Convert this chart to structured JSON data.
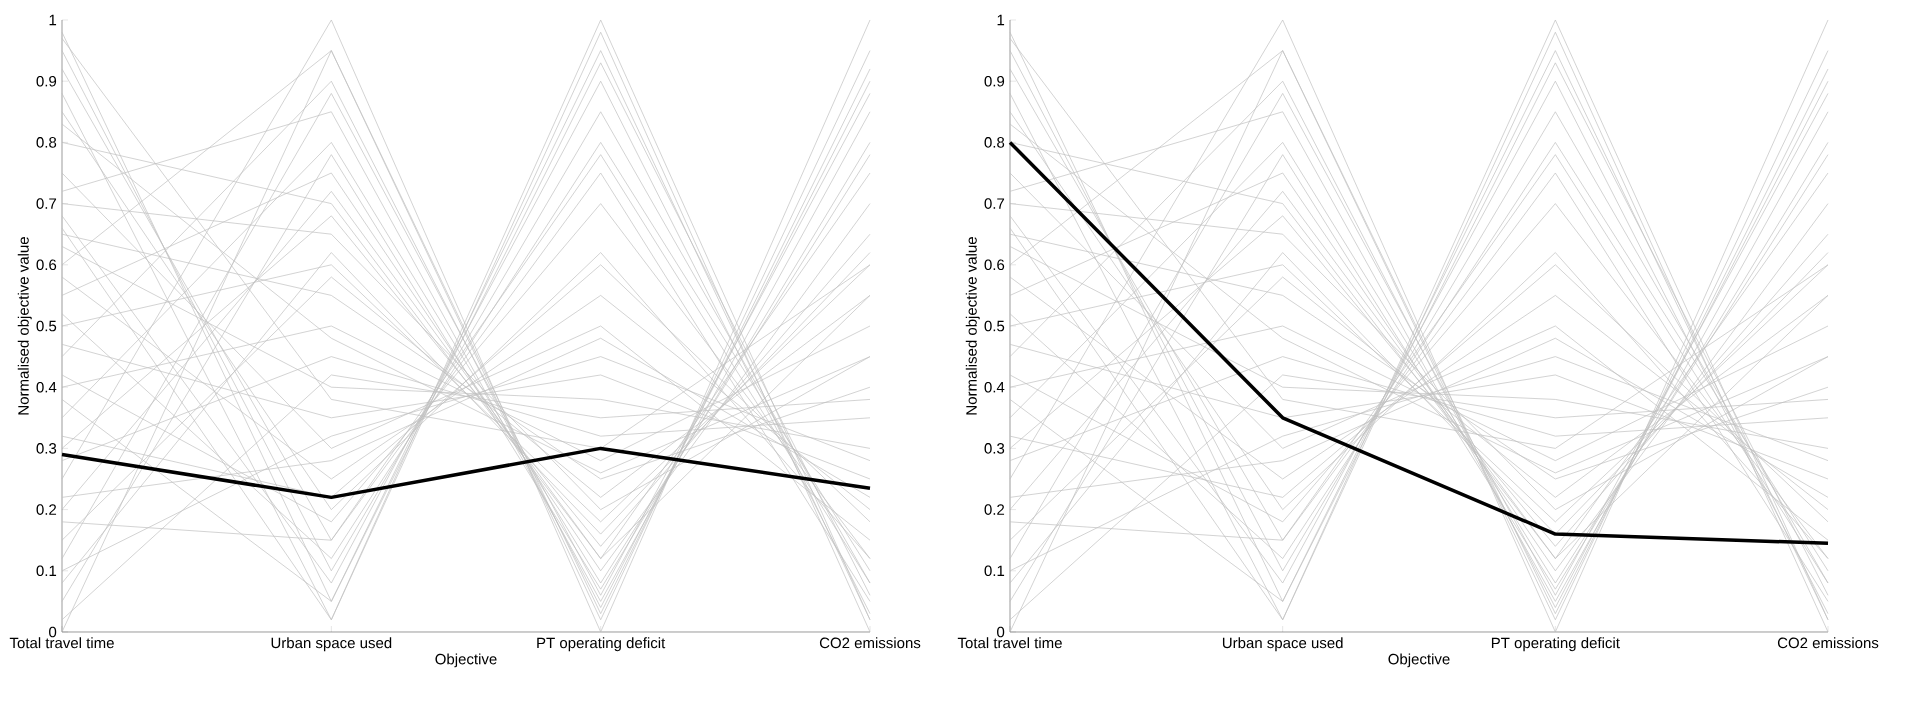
{
  "chart_data": [
    {
      "type": "line",
      "xlabel": "Objective",
      "ylabel": "Normalised objective value",
      "categories": [
        "Total travel time",
        "Urban space used",
        "PT operating deficit",
        "CO2 emissions"
      ],
      "ylim": [
        0,
        1
      ],
      "yticks": [
        0,
        0.1,
        0.2,
        0.3,
        0.4,
        0.5,
        0.6,
        0.7,
        0.8,
        0.9,
        1
      ],
      "series": [
        {
          "color": "#c0c0c0",
          "values": [
            0.98,
            0.05,
            0.95,
            0.02
          ]
        },
        {
          "color": "#c0c0c0",
          "values": [
            0.95,
            0.1,
            0.85,
            0.08
          ]
        },
        {
          "color": "#c0c0c0",
          "values": [
            0.92,
            0.15,
            0.75,
            0.05
          ]
        },
        {
          "color": "#c0c0c0",
          "values": [
            0.88,
            0.02,
            0.98,
            0.0
          ]
        },
        {
          "color": "#c0c0c0",
          "values": [
            0.85,
            0.2,
            0.62,
            0.12
          ]
        },
        {
          "color": "#c0c0c0",
          "values": [
            0.8,
            0.7,
            0.12,
            0.55
          ]
        },
        {
          "color": "#c0c0c0",
          "values": [
            0.75,
            0.3,
            0.5,
            0.15
          ]
        },
        {
          "color": "#c0c0c0",
          "values": [
            0.72,
            0.85,
            0.05,
            0.85
          ]
        },
        {
          "color": "#c0c0c0",
          "values": [
            0.7,
            0.65,
            0.2,
            0.45
          ]
        },
        {
          "color": "#c0c0c0",
          "values": [
            0.68,
            0.08,
            0.9,
            0.03
          ]
        },
        {
          "color": "#c0c0c0",
          "values": [
            0.65,
            0.55,
            0.25,
            0.4
          ]
        },
        {
          "color": "#c0c0c0",
          "values": [
            0.63,
            0.4,
            0.38,
            0.3
          ]
        },
        {
          "color": "#c0c0c0",
          "values": [
            0.6,
            0.95,
            0.02,
            0.95
          ]
        },
        {
          "color": "#c0c0c0",
          "values": [
            0.58,
            0.25,
            0.55,
            0.2
          ]
        },
        {
          "color": "#c0c0c0",
          "values": [
            0.55,
            0.75,
            0.1,
            0.7
          ]
        },
        {
          "color": "#c0c0c0",
          "values": [
            0.52,
            0.12,
            0.8,
            0.1
          ]
        },
        {
          "color": "#c0c0c0",
          "values": [
            0.5,
            0.6,
            0.18,
            0.6
          ]
        },
        {
          "color": "#c0c0c0",
          "values": [
            0.47,
            0.35,
            0.42,
            0.25
          ]
        },
        {
          "color": "#c0c0c0",
          "values": [
            0.45,
            0.9,
            0.04,
            0.9
          ]
        },
        {
          "color": "#c0c0c0",
          "values": [
            0.42,
            0.18,
            0.7,
            0.12
          ]
        },
        {
          "color": "#c0c0c0",
          "values": [
            0.4,
            0.5,
            0.28,
            0.5
          ]
        },
        {
          "color": "#c0c0c0",
          "values": [
            0.38,
            0.05,
            0.93,
            0.06
          ]
        },
        {
          "color": "#c0c0c0",
          "values": [
            0.35,
            0.8,
            0.08,
            0.78
          ]
        },
        {
          "color": "#c0c0c0",
          "values": [
            0.32,
            0.22,
            0.6,
            0.18
          ]
        },
        {
          "color": "#c0c0c0",
          "values": [
            0.3,
            0.68,
            0.14,
            0.65
          ]
        },
        {
          "color": "#c0c0c0",
          "values": [
            0.28,
            0.45,
            0.32,
            0.35
          ]
        },
        {
          "color": "#c0c0c0",
          "values": [
            0.25,
            1.0,
            0.0,
            1.0
          ]
        },
        {
          "color": "#c0c0c0",
          "values": [
            0.22,
            0.28,
            0.48,
            0.22
          ]
        },
        {
          "color": "#c0c0c0",
          "values": [
            0.2,
            0.72,
            0.12,
            0.75
          ]
        },
        {
          "color": "#c0c0c0",
          "values": [
            0.18,
            0.15,
            0.78,
            0.08
          ]
        },
        {
          "color": "#c0c0c0",
          "values": [
            0.15,
            0.58,
            0.22,
            0.55
          ]
        },
        {
          "color": "#c0c0c0",
          "values": [
            0.12,
            0.88,
            0.06,
            0.88
          ]
        },
        {
          "color": "#c0c0c0",
          "values": [
            0.1,
            0.32,
            0.45,
            0.28
          ]
        },
        {
          "color": "#c0c0c0",
          "values": [
            0.08,
            0.62,
            0.16,
            0.62
          ]
        },
        {
          "color": "#c0c0c0",
          "values": [
            0.05,
            0.78,
            0.07,
            0.8
          ]
        },
        {
          "color": "#c0c0c0",
          "values": [
            0.02,
            0.42,
            0.35,
            0.38
          ]
        },
        {
          "color": "#c0c0c0",
          "values": [
            0.0,
            0.95,
            0.03,
            0.92
          ]
        },
        {
          "color": "#c0c0c0",
          "values": [
            0.97,
            0.38,
            0.3,
            0.6
          ]
        },
        {
          "color": "#c0c0c0",
          "values": [
            0.83,
            0.48,
            0.26,
            0.45
          ]
        },
        {
          "color": "#c0c0c0",
          "values": [
            0.66,
            0.02,
            1.0,
            0.02
          ]
        },
        {
          "color": "#000000",
          "values": [
            0.29,
            0.22,
            0.3,
            0.235
          ]
        }
      ]
    },
    {
      "type": "line",
      "xlabel": "Objective",
      "ylabel": "Normalised objective value",
      "categories": [
        "Total travel time",
        "Urban space used",
        "PT operating deficit",
        "CO2 emissions"
      ],
      "ylim": [
        0,
        1
      ],
      "yticks": [
        0,
        0.1,
        0.2,
        0.3,
        0.4,
        0.5,
        0.6,
        0.7,
        0.8,
        0.9,
        1
      ],
      "series": [
        {
          "color": "#c0c0c0",
          "values": [
            0.98,
            0.05,
            0.95,
            0.02
          ]
        },
        {
          "color": "#c0c0c0",
          "values": [
            0.95,
            0.1,
            0.85,
            0.08
          ]
        },
        {
          "color": "#c0c0c0",
          "values": [
            0.92,
            0.15,
            0.75,
            0.05
          ]
        },
        {
          "color": "#c0c0c0",
          "values": [
            0.88,
            0.02,
            0.98,
            0.0
          ]
        },
        {
          "color": "#c0c0c0",
          "values": [
            0.85,
            0.2,
            0.62,
            0.12
          ]
        },
        {
          "color": "#c0c0c0",
          "values": [
            0.8,
            0.7,
            0.12,
            0.55
          ]
        },
        {
          "color": "#c0c0c0",
          "values": [
            0.75,
            0.3,
            0.5,
            0.15
          ]
        },
        {
          "color": "#c0c0c0",
          "values": [
            0.72,
            0.85,
            0.05,
            0.85
          ]
        },
        {
          "color": "#c0c0c0",
          "values": [
            0.7,
            0.65,
            0.2,
            0.45
          ]
        },
        {
          "color": "#c0c0c0",
          "values": [
            0.68,
            0.08,
            0.9,
            0.03
          ]
        },
        {
          "color": "#c0c0c0",
          "values": [
            0.65,
            0.55,
            0.25,
            0.4
          ]
        },
        {
          "color": "#c0c0c0",
          "values": [
            0.63,
            0.4,
            0.38,
            0.3
          ]
        },
        {
          "color": "#c0c0c0",
          "values": [
            0.6,
            0.95,
            0.02,
            0.95
          ]
        },
        {
          "color": "#c0c0c0",
          "values": [
            0.58,
            0.25,
            0.55,
            0.2
          ]
        },
        {
          "color": "#c0c0c0",
          "values": [
            0.55,
            0.75,
            0.1,
            0.7
          ]
        },
        {
          "color": "#c0c0c0",
          "values": [
            0.52,
            0.12,
            0.8,
            0.1
          ]
        },
        {
          "color": "#c0c0c0",
          "values": [
            0.5,
            0.6,
            0.18,
            0.6
          ]
        },
        {
          "color": "#c0c0c0",
          "values": [
            0.47,
            0.35,
            0.42,
            0.25
          ]
        },
        {
          "color": "#c0c0c0",
          "values": [
            0.45,
            0.9,
            0.04,
            0.9
          ]
        },
        {
          "color": "#c0c0c0",
          "values": [
            0.42,
            0.18,
            0.7,
            0.12
          ]
        },
        {
          "color": "#c0c0c0",
          "values": [
            0.4,
            0.5,
            0.28,
            0.5
          ]
        },
        {
          "color": "#c0c0c0",
          "values": [
            0.38,
            0.05,
            0.93,
            0.06
          ]
        },
        {
          "color": "#c0c0c0",
          "values": [
            0.35,
            0.8,
            0.08,
            0.78
          ]
        },
        {
          "color": "#c0c0c0",
          "values": [
            0.32,
            0.22,
            0.6,
            0.18
          ]
        },
        {
          "color": "#c0c0c0",
          "values": [
            0.3,
            0.68,
            0.14,
            0.65
          ]
        },
        {
          "color": "#c0c0c0",
          "values": [
            0.28,
            0.45,
            0.32,
            0.35
          ]
        },
        {
          "color": "#c0c0c0",
          "values": [
            0.25,
            1.0,
            0.0,
            1.0
          ]
        },
        {
          "color": "#c0c0c0",
          "values": [
            0.22,
            0.28,
            0.48,
            0.22
          ]
        },
        {
          "color": "#c0c0c0",
          "values": [
            0.2,
            0.72,
            0.12,
            0.75
          ]
        },
        {
          "color": "#c0c0c0",
          "values": [
            0.18,
            0.15,
            0.78,
            0.08
          ]
        },
        {
          "color": "#c0c0c0",
          "values": [
            0.15,
            0.58,
            0.22,
            0.55
          ]
        },
        {
          "color": "#c0c0c0",
          "values": [
            0.12,
            0.88,
            0.06,
            0.88
          ]
        },
        {
          "color": "#c0c0c0",
          "values": [
            0.1,
            0.32,
            0.45,
            0.28
          ]
        },
        {
          "color": "#c0c0c0",
          "values": [
            0.08,
            0.62,
            0.16,
            0.62
          ]
        },
        {
          "color": "#c0c0c0",
          "values": [
            0.05,
            0.78,
            0.07,
            0.8
          ]
        },
        {
          "color": "#c0c0c0",
          "values": [
            0.02,
            0.42,
            0.35,
            0.38
          ]
        },
        {
          "color": "#c0c0c0",
          "values": [
            0.0,
            0.95,
            0.03,
            0.92
          ]
        },
        {
          "color": "#c0c0c0",
          "values": [
            0.97,
            0.38,
            0.3,
            0.6
          ]
        },
        {
          "color": "#c0c0c0",
          "values": [
            0.83,
            0.48,
            0.26,
            0.45
          ]
        },
        {
          "color": "#c0c0c0",
          "values": [
            0.66,
            0.02,
            1.0,
            0.02
          ]
        },
        {
          "color": "#000000",
          "values": [
            0.8,
            0.35,
            0.16,
            0.145
          ]
        }
      ]
    }
  ]
}
